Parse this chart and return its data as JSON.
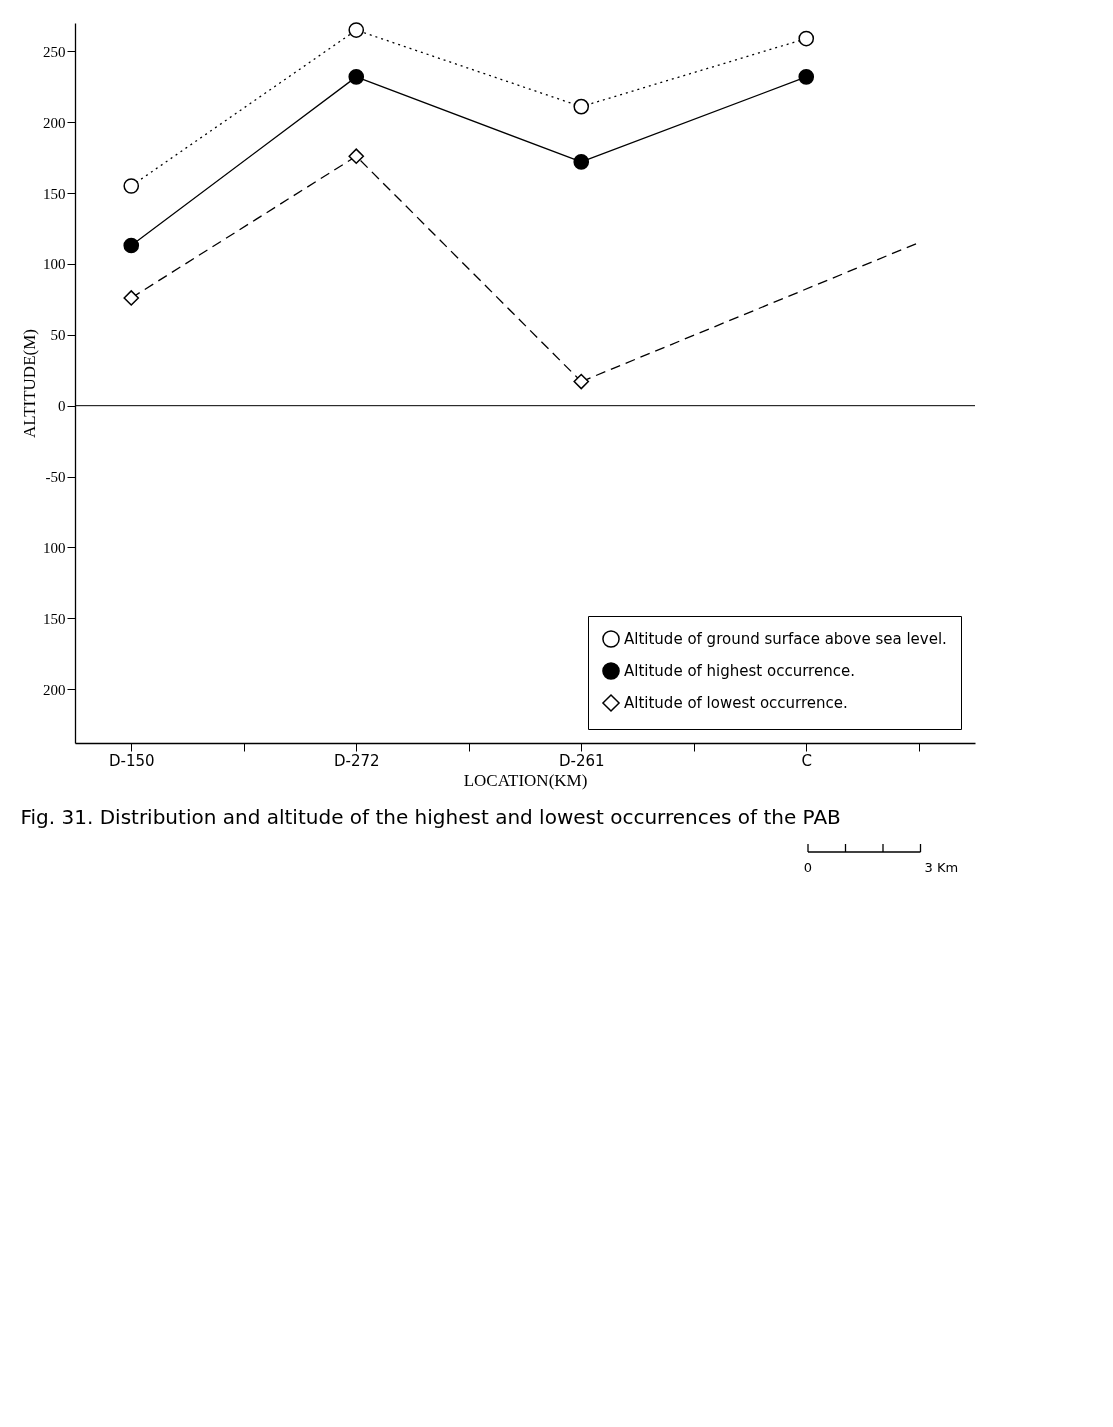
{
  "chart_data": {
    "type": "line",
    "title": "Fig. 31. Distribution and altitude of the highest and lowest occurrences of the PAB",
    "xlabel": "LOCATION(KM)",
    "ylabel": "ALTITUDE(M)",
    "categories": [
      "D-150",
      null,
      "D-272",
      null,
      "D-261",
      null,
      "C",
      null
    ],
    "ylim": [
      -238,
      270
    ],
    "yticks": [
      250,
      200,
      150,
      100,
      50,
      0,
      -50,
      {
        "value": -100,
        "label": "100"
      },
      {
        "value": -150,
        "label": "150"
      },
      {
        "value": -200,
        "label": "200"
      }
    ],
    "series": [
      {
        "name": "Altitude of ground surface above sea level.",
        "color": "#ffffff",
        "marker": "circle",
        "line_style": "dotted",
        "x": [
          "D-150",
          "D-272",
          "D-261",
          "C"
        ],
        "values": [
          155,
          265,
          211,
          259
        ]
      },
      {
        "name": "Altitude of highest occurrence.",
        "color": "#000000",
        "marker": "circle",
        "line_style": "solid",
        "x": [
          "D-150",
          "D-272",
          "D-261",
          "C"
        ],
        "values": [
          113,
          232,
          172,
          232
        ]
      },
      {
        "name": "Altitude of lowest occurrence.",
        "color": "#ffffff",
        "marker": "diamond",
        "line_style": "dashed",
        "x": [
          "D-150",
          "D-272",
          "D-261"
        ],
        "values": [
          76,
          176,
          17
        ]
      },
      {
        "color": "#000000",
        "marker": "none",
        "line_style": "dashed",
        "values": [
          null,
          null,
          null,
          null,
          17,
          null,
          null,
          115
        ]
      }
    ],
    "ref_lines": [
      {
        "axis": "y",
        "value": 0,
        "color": "#000000",
        "line_style": "solid"
      }
    ],
    "legend": "bottom right",
    "grid": false,
    "annotations": [
      "0",
      "3 Km"
    ]
  }
}
